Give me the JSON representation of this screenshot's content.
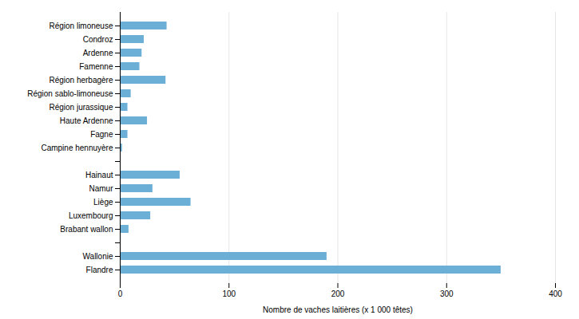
{
  "chart_data": {
    "type": "bar",
    "orientation": "horizontal",
    "xlabel": "Nombre de vaches laitières (x 1 000 têtes)",
    "categories": [
      "Région limoneuse",
      "Condroz",
      "Ardenne",
      "Famenne",
      "Région herbagère",
      "Région sablo-limoneuse",
      "Région jurassique",
      "Haute Ardenne",
      "Fagne",
      "Campine hennuyère",
      null,
      "Hainaut",
      "Namur",
      "Liège",
      "Luxembourg",
      "Brabant wallon",
      null,
      "Wallonie",
      "Flandre"
    ],
    "values": [
      43,
      22,
      20,
      18,
      42,
      10,
      7,
      25,
      7,
      2,
      0,
      55,
      30,
      65,
      28,
      8,
      0,
      190,
      350
    ],
    "color": "#6BAED6",
    "xlim": [
      0,
      400
    ],
    "xticks": [
      0,
      100,
      200,
      300,
      400
    ],
    "grid": true
  }
}
